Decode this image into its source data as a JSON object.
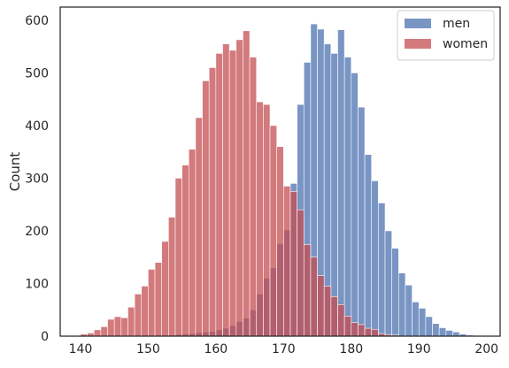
{
  "chart_data": {
    "type": "bar",
    "title": "",
    "xlabel": "",
    "ylabel": "Count",
    "xlim": [
      137,
      202
    ],
    "ylim": [
      0,
      625
    ],
    "bin_width": 1,
    "xticks": [
      140,
      150,
      160,
      170,
      180,
      190,
      200
    ],
    "yticks": [
      0,
      100,
      200,
      300,
      400,
      500,
      600
    ],
    "grid": false,
    "legend_position": "top-right",
    "series": [
      {
        "name": "men",
        "color": "#4c72b0",
        "bin_starts": [
          152,
          153,
          154,
          155,
          156,
          157,
          158,
          159,
          160,
          161,
          162,
          163,
          164,
          165,
          166,
          167,
          168,
          169,
          170,
          171,
          172,
          173,
          174,
          175,
          176,
          177,
          178,
          179,
          180,
          181,
          182,
          183,
          184,
          185,
          186,
          187,
          188,
          189,
          190,
          191,
          192,
          193,
          194,
          195,
          196,
          197
        ],
        "counts": [
          1,
          2,
          3,
          4,
          5,
          7,
          8,
          9,
          12,
          15,
          20,
          28,
          34,
          50,
          80,
          110,
          130,
          175,
          202,
          290,
          440,
          520,
          593,
          583,
          555,
          537,
          582,
          530,
          500,
          435,
          345,
          295,
          253,
          200,
          167,
          120,
          97,
          65,
          53,
          37,
          24,
          16,
          11,
          8,
          4,
          2
        ]
      },
      {
        "name": "women",
        "color": "#c44e52",
        "bin_starts": [
          140,
          141,
          142,
          143,
          144,
          145,
          146,
          147,
          148,
          149,
          150,
          151,
          152,
          153,
          154,
          155,
          156,
          157,
          158,
          159,
          160,
          161,
          162,
          163,
          164,
          165,
          166,
          167,
          168,
          169,
          170,
          171,
          172,
          173,
          174,
          175,
          176,
          177,
          178,
          179,
          180,
          181,
          182,
          183,
          184,
          185,
          186
        ],
        "counts": [
          4,
          6,
          12,
          18,
          32,
          37,
          35,
          55,
          80,
          95,
          127,
          140,
          180,
          226,
          300,
          325,
          355,
          415,
          485,
          510,
          537,
          555,
          543,
          563,
          580,
          530,
          445,
          440,
          400,
          360,
          285,
          275,
          240,
          174,
          150,
          115,
          95,
          75,
          60,
          38,
          26,
          22,
          15,
          13,
          5,
          3,
          2
        ]
      }
    ]
  }
}
